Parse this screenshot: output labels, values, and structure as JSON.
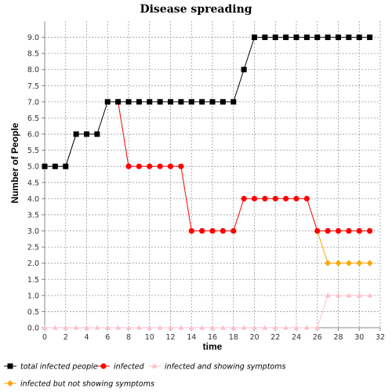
{
  "chart_data": {
    "type": "line",
    "title": "Disease spreading",
    "xlabel": "time",
    "ylabel": "Number of People",
    "xlim": [
      0,
      32
    ],
    "ylim": [
      0.0,
      9.5
    ],
    "grid": true,
    "legend_position": "bottom",
    "x_ticks": [
      "0",
      "2",
      "4",
      "6",
      "8",
      "10",
      "12",
      "14",
      "16",
      "18",
      "20",
      "22",
      "24",
      "26",
      "28",
      "30",
      "32"
    ],
    "y_ticks": [
      "0.0",
      "0.5",
      "1.0",
      "1.5",
      "2.0",
      "2.5",
      "3.0",
      "3.5",
      "4.0",
      "4.5",
      "5.0",
      "5.5",
      "6.0",
      "6.5",
      "7.0",
      "7.5",
      "8.0",
      "8.5",
      "9.0"
    ],
    "series": [
      {
        "name": "total infected people",
        "color": "#000000",
        "marker": "square",
        "x": [
          0,
          1,
          2,
          3,
          4,
          5,
          6,
          7,
          8,
          9,
          10,
          11,
          12,
          13,
          14,
          15,
          16,
          17,
          18,
          19,
          20,
          21,
          22,
          23,
          24,
          25,
          26,
          27,
          28,
          29,
          30,
          31
        ],
        "y": [
          5,
          5,
          5,
          6,
          6,
          6,
          7,
          7,
          7,
          7,
          7,
          7,
          7,
          7,
          7,
          7,
          7,
          7,
          7,
          8,
          9,
          9,
          9,
          9,
          9,
          9,
          9,
          9,
          9,
          9,
          9,
          9
        ]
      },
      {
        "name": "infected",
        "color": "#ff0000",
        "marker": "circle",
        "x": [
          7,
          8,
          9,
          10,
          11,
          12,
          13,
          14,
          15,
          16,
          17,
          18,
          19,
          20,
          21,
          22,
          23,
          24,
          25,
          26,
          27,
          28,
          29,
          30,
          31
        ],
        "y": [
          7,
          5,
          5,
          5,
          5,
          5,
          5,
          3,
          3,
          3,
          3,
          3,
          4,
          4,
          4,
          4,
          4,
          4,
          4,
          3,
          3,
          3,
          3,
          3,
          3
        ]
      },
      {
        "name": "infected and showing symptoms",
        "color": "#ffc0cb",
        "marker": "triangle",
        "x": [
          0,
          1,
          2,
          3,
          4,
          5,
          6,
          7,
          8,
          9,
          10,
          11,
          12,
          13,
          14,
          15,
          16,
          17,
          18,
          19,
          20,
          21,
          22,
          23,
          24,
          25,
          26,
          27,
          28,
          29,
          30,
          31
        ],
        "y": [
          0,
          0,
          0,
          0,
          0,
          0,
          0,
          0,
          0,
          0,
          0,
          0,
          0,
          0,
          0,
          0,
          0,
          0,
          0,
          0,
          0,
          0,
          0,
          0,
          0,
          0,
          0,
          1,
          1,
          1,
          1,
          1
        ]
      },
      {
        "name": "infected but not showing symptoms",
        "color": "#ffa500",
        "marker": "diamond",
        "x": [
          26,
          27,
          28,
          29,
          30,
          31
        ],
        "y": [
          3,
          2,
          2,
          2,
          2,
          2
        ]
      }
    ]
  }
}
